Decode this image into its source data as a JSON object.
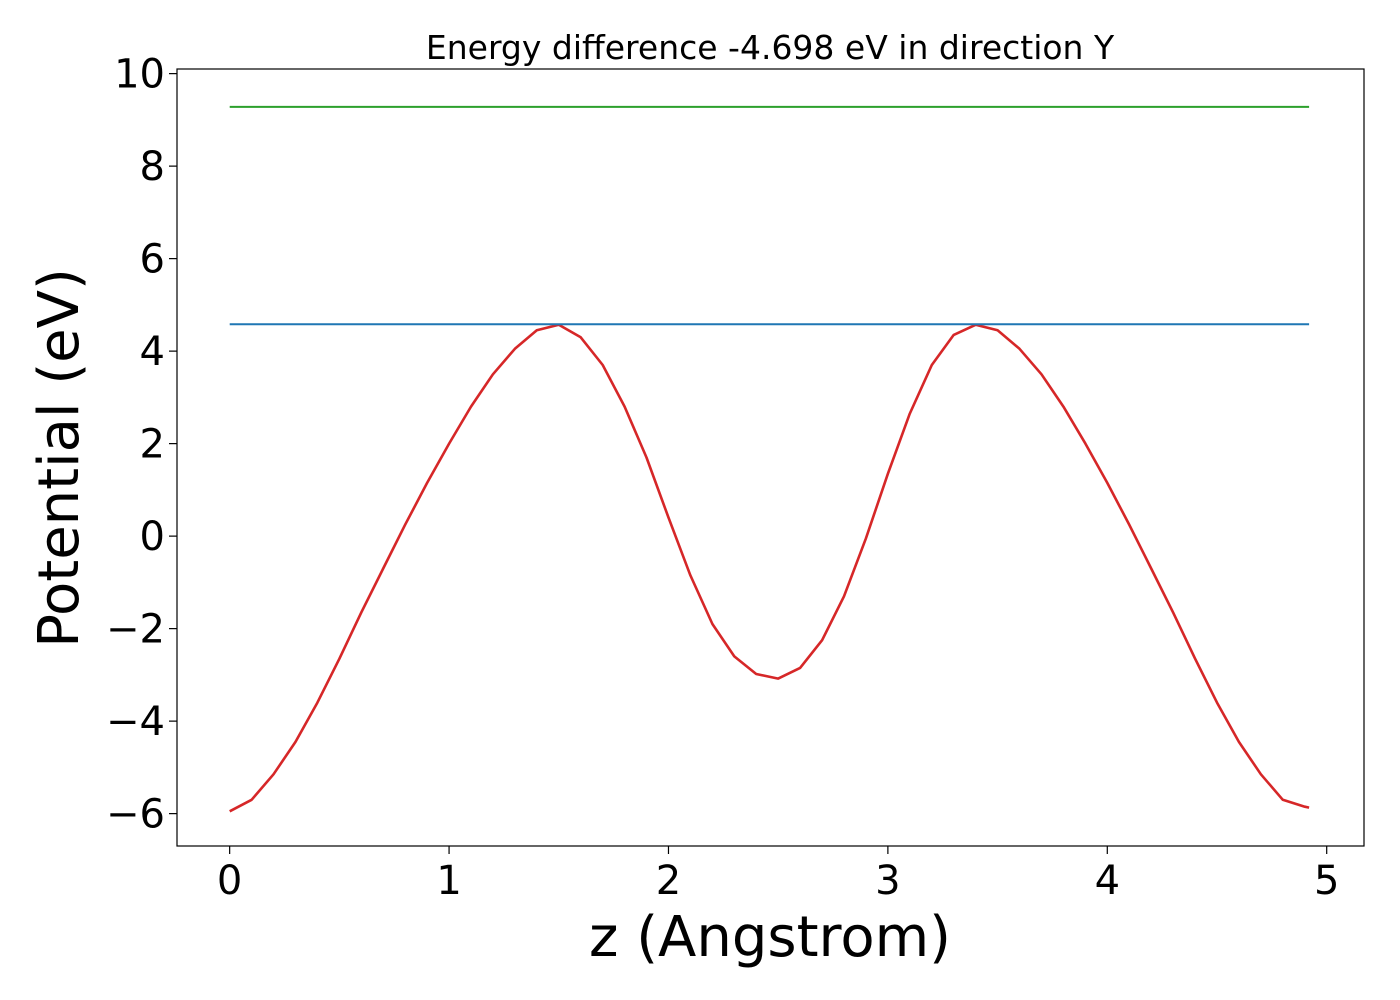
{
  "chart_data": {
    "type": "line",
    "title": "Energy difference -4.698 eV in direction Y",
    "xlabel": "z (Angstrom)",
    "ylabel": "Potential (eV)",
    "xlim": [
      -0.24,
      5.17
    ],
    "ylim": [
      -6.7,
      10.1
    ],
    "xticks": [
      0,
      1,
      2,
      3,
      4,
      5
    ],
    "xtick_labels": [
      "0",
      "1",
      "2",
      "3",
      "4",
      "5"
    ],
    "yticks": [
      -6,
      -4,
      -2,
      0,
      2,
      4,
      6,
      8,
      10
    ],
    "ytick_labels": [
      "−6",
      "−4",
      "−2",
      "0",
      "2",
      "4",
      "6",
      "8",
      "10"
    ],
    "grid": false,
    "series": [
      {
        "color": "#d62728",
        "x": [
          0.0,
          0.1,
          0.2,
          0.3,
          0.4,
          0.5,
          0.6,
          0.7,
          0.8,
          0.9,
          1.0,
          1.1,
          1.2,
          1.3,
          1.4,
          1.5,
          1.6,
          1.7,
          1.8,
          1.9,
          2.0,
          2.1,
          2.2,
          2.3,
          2.4,
          2.5,
          2.6,
          2.7,
          2.8,
          2.9,
          3.0,
          3.1,
          3.2,
          3.3,
          3.4,
          3.5,
          3.6,
          3.7,
          3.8,
          3.9,
          4.0,
          4.1,
          4.2,
          4.3,
          4.4,
          4.5,
          4.6,
          4.7,
          4.8,
          4.9,
          4.92
        ],
        "y": [
          -5.95,
          -5.7,
          -5.15,
          -4.45,
          -3.6,
          -2.65,
          -1.65,
          -0.7,
          0.25,
          1.15,
          2.0,
          2.8,
          3.5,
          4.05,
          4.45,
          4.57,
          4.3,
          3.7,
          2.8,
          1.7,
          0.4,
          -0.85,
          -1.9,
          -2.6,
          -2.98,
          -3.08,
          -2.85,
          -2.25,
          -1.3,
          -0.05,
          1.35,
          2.65,
          3.7,
          4.35,
          4.57,
          4.45,
          4.05,
          3.5,
          2.8,
          2.0,
          1.15,
          0.25,
          -0.7,
          -1.65,
          -2.65,
          -3.6,
          -4.45,
          -5.15,
          -5.7,
          -5.85,
          -5.87
        ]
      },
      {
        "color": "#1f77b4",
        "x": [
          0.0,
          4.92
        ],
        "y": [
          4.58,
          4.58
        ]
      },
      {
        "color": "#2ca02c",
        "x": [
          0.0,
          4.92
        ],
        "y": [
          9.28,
          9.28
        ]
      }
    ]
  }
}
